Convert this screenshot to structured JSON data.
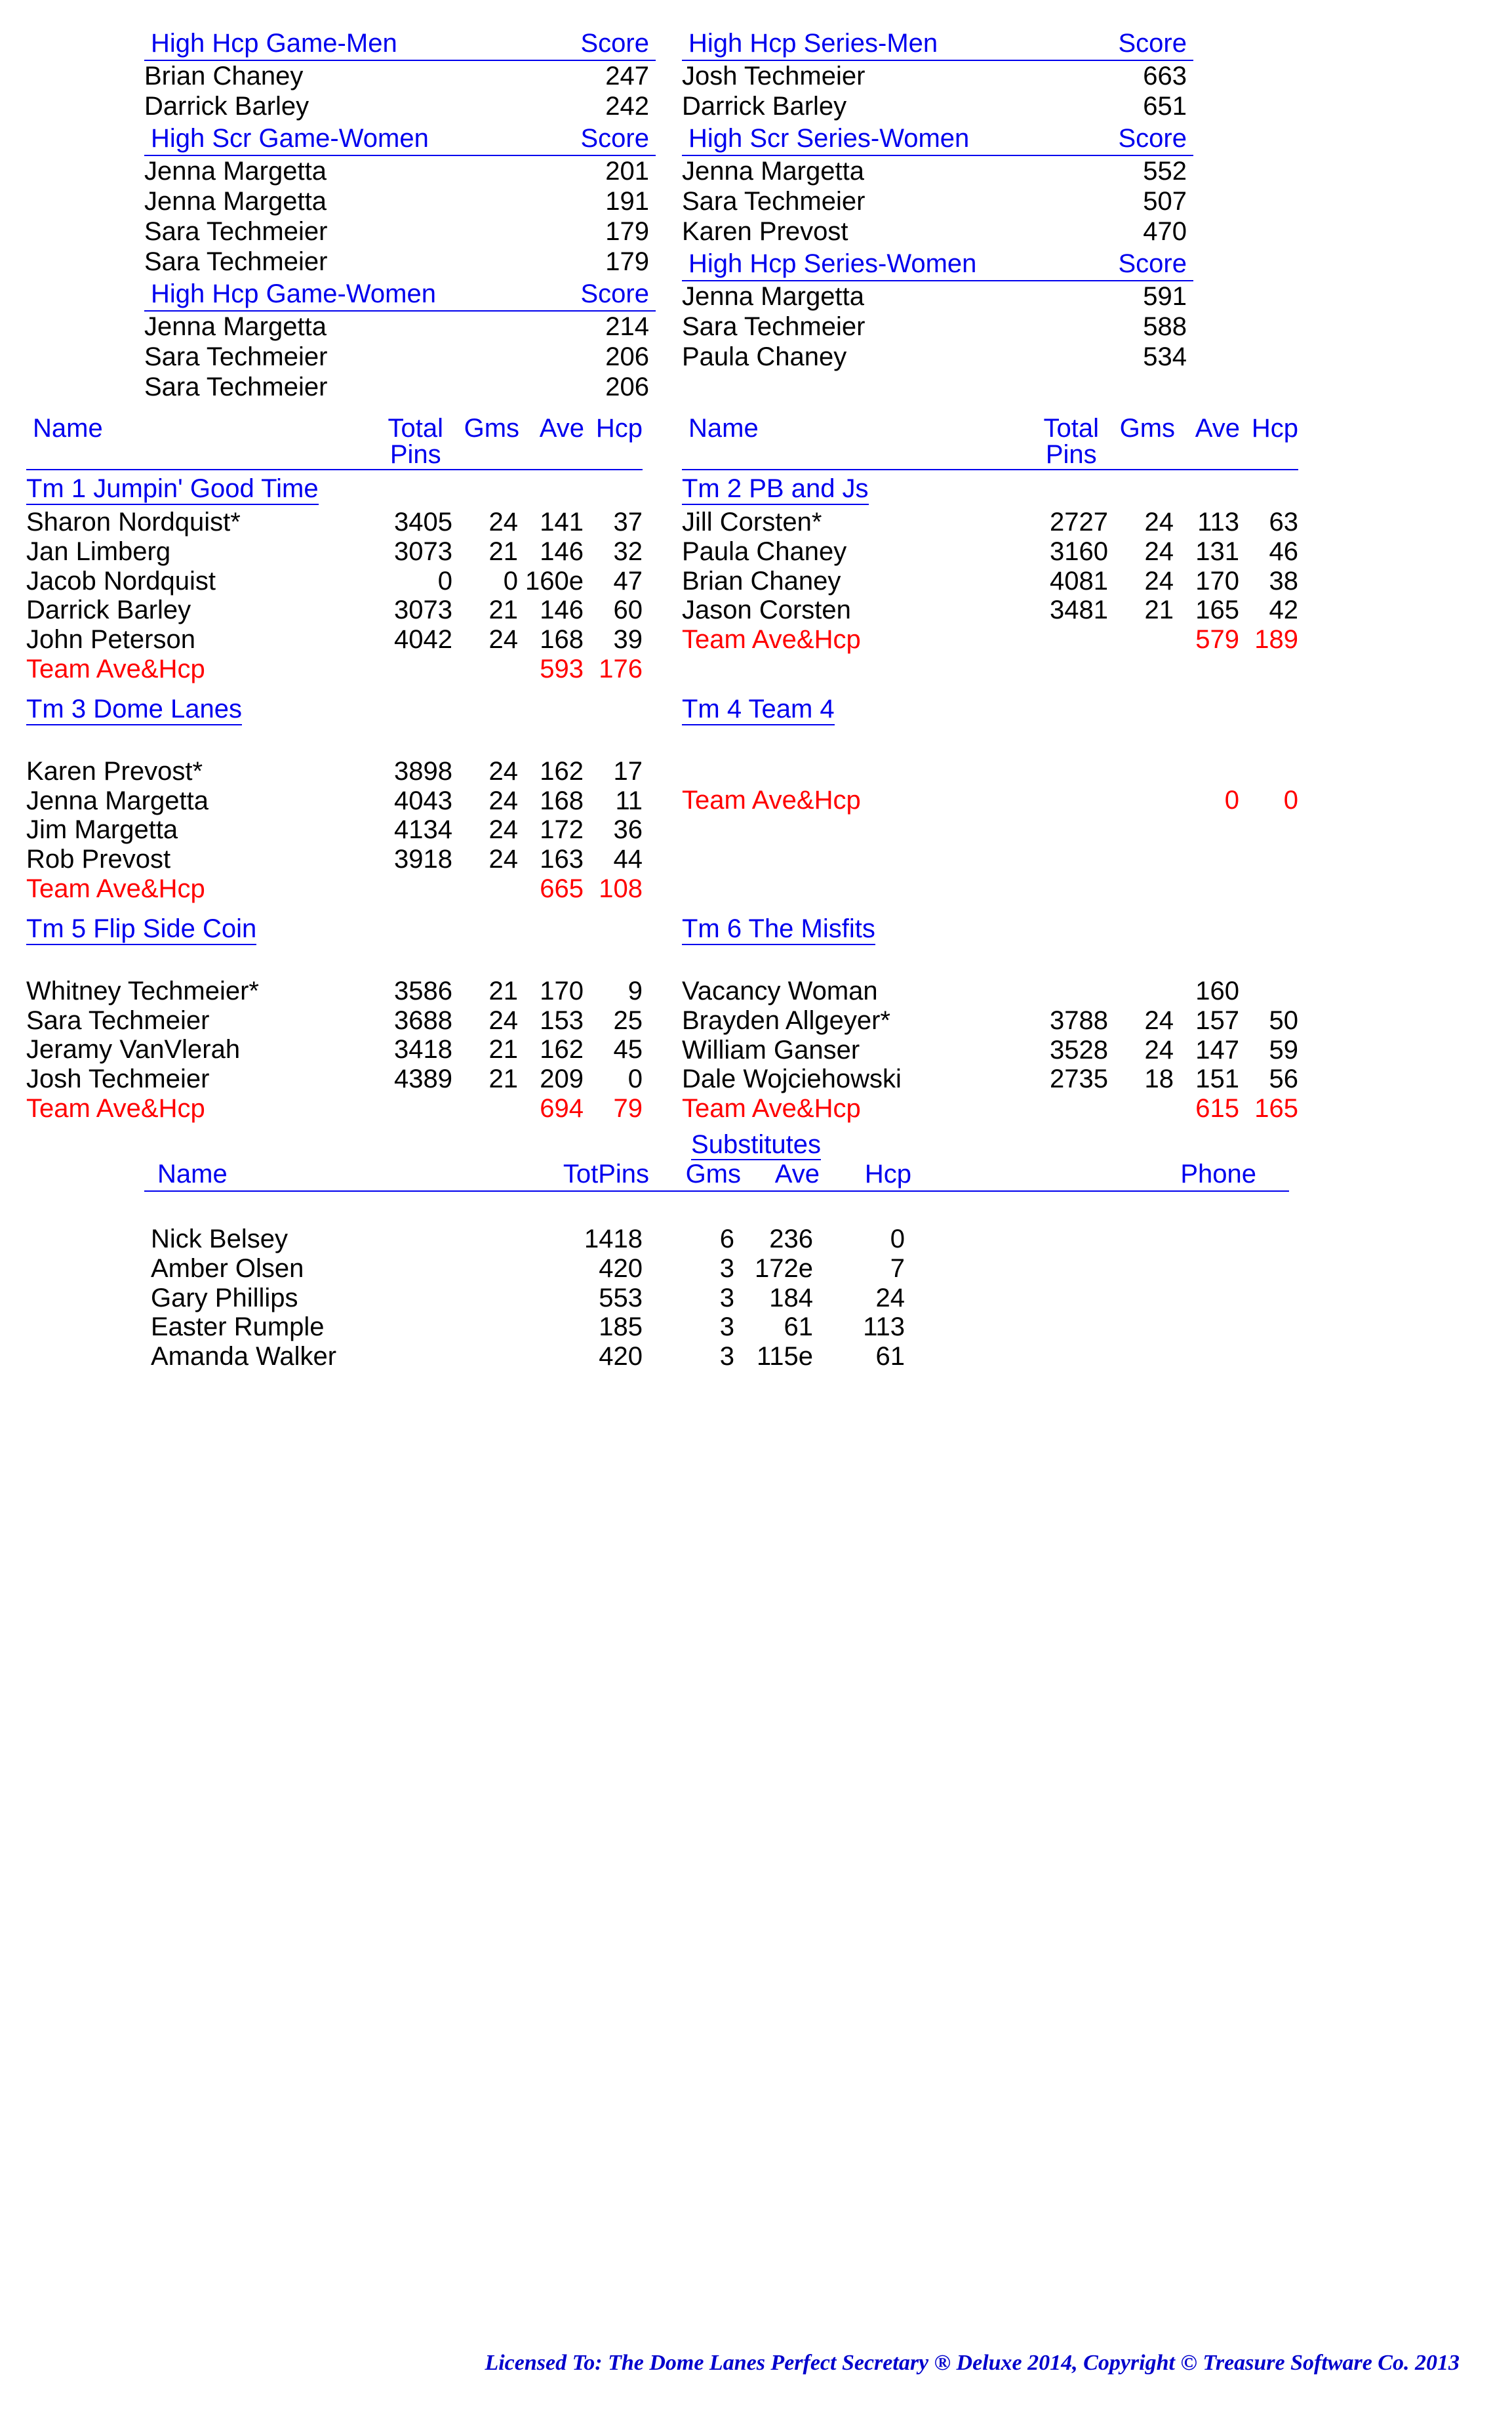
{
  "headers": {
    "score": "Score",
    "name": "Name",
    "totalPins": "Total\nPins",
    "gms": "Gms",
    "ave": "Ave",
    "hcp": "Hcp",
    "totPins": "TotPins",
    "phone": "Phone",
    "substitutes": "Substitutes",
    "teamAveHcp": "Team Ave&Hcp"
  },
  "colors": {
    "link": "#0000ee",
    "emphasis": "#ff0000",
    "text": "#000000",
    "background": "#ffffff",
    "footer": "#0000cc"
  },
  "categories": {
    "left": [
      {
        "title": "High Hcp Game-Men",
        "rows": [
          {
            "name": "Brian Chaney",
            "score": "247"
          },
          {
            "name": "Darrick Barley",
            "score": "242"
          }
        ]
      },
      {
        "title": "High Scr Game-Women",
        "rows": [
          {
            "name": "Jenna Margetta",
            "score": "201"
          },
          {
            "name": "Jenna Margetta",
            "score": "191"
          },
          {
            "name": "Sara Techmeier",
            "score": "179"
          },
          {
            "name": "Sara Techmeier",
            "score": "179"
          }
        ]
      },
      {
        "title": "High Hcp Game-Women",
        "rows": [
          {
            "name": "Jenna Margetta",
            "score": "214"
          },
          {
            "name": "Sara Techmeier",
            "score": "206"
          },
          {
            "name": "Sara Techmeier",
            "score": "206"
          }
        ]
      }
    ],
    "right": [
      {
        "title": "High Hcp Series-Men",
        "rows": [
          {
            "name": "Josh Techmeier",
            "score": "663"
          },
          {
            "name": "Darrick Barley",
            "score": "651"
          }
        ]
      },
      {
        "title": "High Scr Series-Women",
        "rows": [
          {
            "name": "Jenna Margetta",
            "score": "552"
          },
          {
            "name": "Sara Techmeier",
            "score": "507"
          },
          {
            "name": "Karen Prevost",
            "score": "470"
          }
        ]
      },
      {
        "title": "High Hcp Series-Women",
        "rows": [
          {
            "name": "Jenna Margetta",
            "score": "591"
          },
          {
            "name": "Sara Techmeier",
            "score": "588"
          },
          {
            "name": "Paula Chaney",
            "score": "534"
          }
        ]
      }
    ]
  },
  "teams": {
    "left": [
      {
        "name": "Tm 1 Jumpin' Good Time",
        "players": [
          {
            "name": "Sharon Nordquist*",
            "pins": "3405",
            "gms": "24",
            "ave": "141",
            "hcp": "37"
          },
          {
            "name": "Jan Limberg",
            "pins": "3073",
            "gms": "21",
            "ave": "146",
            "hcp": "32"
          },
          {
            "name": "Jacob Nordquist",
            "pins": "0",
            "gms": "0",
            "ave": "160e",
            "hcp": "47"
          },
          {
            "name": "Darrick Barley",
            "pins": "3073",
            "gms": "21",
            "ave": "146",
            "hcp": "60"
          },
          {
            "name": "John Peterson",
            "pins": "4042",
            "gms": "24",
            "ave": "168",
            "hcp": "39"
          }
        ],
        "totalAve": "593",
        "totalHcp": "176"
      },
      {
        "name": "Tm 3 Dome Lanes",
        "players": [
          {
            "name": "",
            "pins": "",
            "gms": "",
            "ave": "",
            "hcp": "",
            "blank": true
          },
          {
            "name": "Karen Prevost*",
            "pins": "3898",
            "gms": "24",
            "ave": "162",
            "hcp": "17"
          },
          {
            "name": "Jenna Margetta",
            "pins": "4043",
            "gms": "24",
            "ave": "168",
            "hcp": "11"
          },
          {
            "name": "Jim Margetta",
            "pins": "4134",
            "gms": "24",
            "ave": "172",
            "hcp": "36"
          },
          {
            "name": "Rob Prevost",
            "pins": "3918",
            "gms": "24",
            "ave": "163",
            "hcp": "44"
          }
        ],
        "totalAve": "665",
        "totalHcp": "108"
      },
      {
        "name": "Tm 5 Flip Side Coin",
        "players": [
          {
            "name": "",
            "pins": "",
            "gms": "",
            "ave": "",
            "hcp": "",
            "blank": true
          },
          {
            "name": "Whitney Techmeier*",
            "pins": "3586",
            "gms": "21",
            "ave": "170",
            "hcp": "9"
          },
          {
            "name": "Sara Techmeier",
            "pins": "3688",
            "gms": "24",
            "ave": "153",
            "hcp": "25"
          },
          {
            "name": "Jeramy VanVlerah",
            "pins": "3418",
            "gms": "21",
            "ave": "162",
            "hcp": "45"
          },
          {
            "name": "Josh Techmeier",
            "pins": "4389",
            "gms": "21",
            "ave": "209",
            "hcp": "0"
          }
        ],
        "totalAve": "694",
        "totalHcp": "79"
      }
    ],
    "right": [
      {
        "name": "Tm 2 PB and Js",
        "players": [
          {
            "name": "Jill Corsten*",
            "pins": "2727",
            "gms": "24",
            "ave": "113",
            "hcp": "63"
          },
          {
            "name": "Paula Chaney",
            "pins": "3160",
            "gms": "24",
            "ave": "131",
            "hcp": "46"
          },
          {
            "name": "Brian Chaney",
            "pins": "4081",
            "gms": "24",
            "ave": "170",
            "hcp": "38"
          },
          {
            "name": "Jason Corsten",
            "pins": "3481",
            "gms": "21",
            "ave": "165",
            "hcp": "42"
          }
        ],
        "totalAve": "579",
        "totalHcp": "189"
      },
      {
        "name": "Tm 4 Team 4",
        "players": [
          {
            "name": "",
            "pins": "",
            "gms": "",
            "ave": "",
            "hcp": "",
            "blank": true
          },
          {
            "name": "",
            "pins": "",
            "gms": "",
            "ave": "",
            "hcp": "",
            "blank": true
          }
        ],
        "totalAve": "0",
        "totalHcp": "0"
      },
      {
        "name": "Tm 6 The Misfits",
        "players": [
          {
            "name": "",
            "pins": "",
            "gms": "",
            "ave": "",
            "hcp": "",
            "blank": true
          },
          {
            "name": "Vacancy Woman",
            "pins": "",
            "gms": "",
            "ave": "160",
            "hcp": ""
          },
          {
            "name": "Brayden Allgeyer*",
            "pins": "3788",
            "gms": "24",
            "ave": "157",
            "hcp": "50"
          },
          {
            "name": "William Ganser",
            "pins": "3528",
            "gms": "24",
            "ave": "147",
            "hcp": "59"
          },
          {
            "name": "Dale Wojciehowski",
            "pins": "2735",
            "gms": "18",
            "ave": "151",
            "hcp": "56"
          }
        ],
        "totalAve": "615",
        "totalHcp": "165"
      }
    ]
  },
  "substitutes": [
    {
      "name": "Nick Belsey",
      "pins": "1418",
      "gms": "6",
      "ave": "236",
      "hcp": "0"
    },
    {
      "name": "Amber Olsen",
      "pins": "420",
      "gms": "3",
      "ave": "172e",
      "hcp": "7"
    },
    {
      "name": "Gary Phillips",
      "pins": "553",
      "gms": "3",
      "ave": "184",
      "hcp": "24"
    },
    {
      "name": "Easter Rumple",
      "pins": "185",
      "gms": "3",
      "ave": "61",
      "hcp": "113"
    },
    {
      "name": "Amanda Walker",
      "pins": "420",
      "gms": "3",
      "ave": "115e",
      "hcp": "61"
    }
  ],
  "footer": "Licensed To: The Dome Lanes    Perfect Secretary ® Deluxe  2014, Copyright © Treasure Software Co. 2013"
}
